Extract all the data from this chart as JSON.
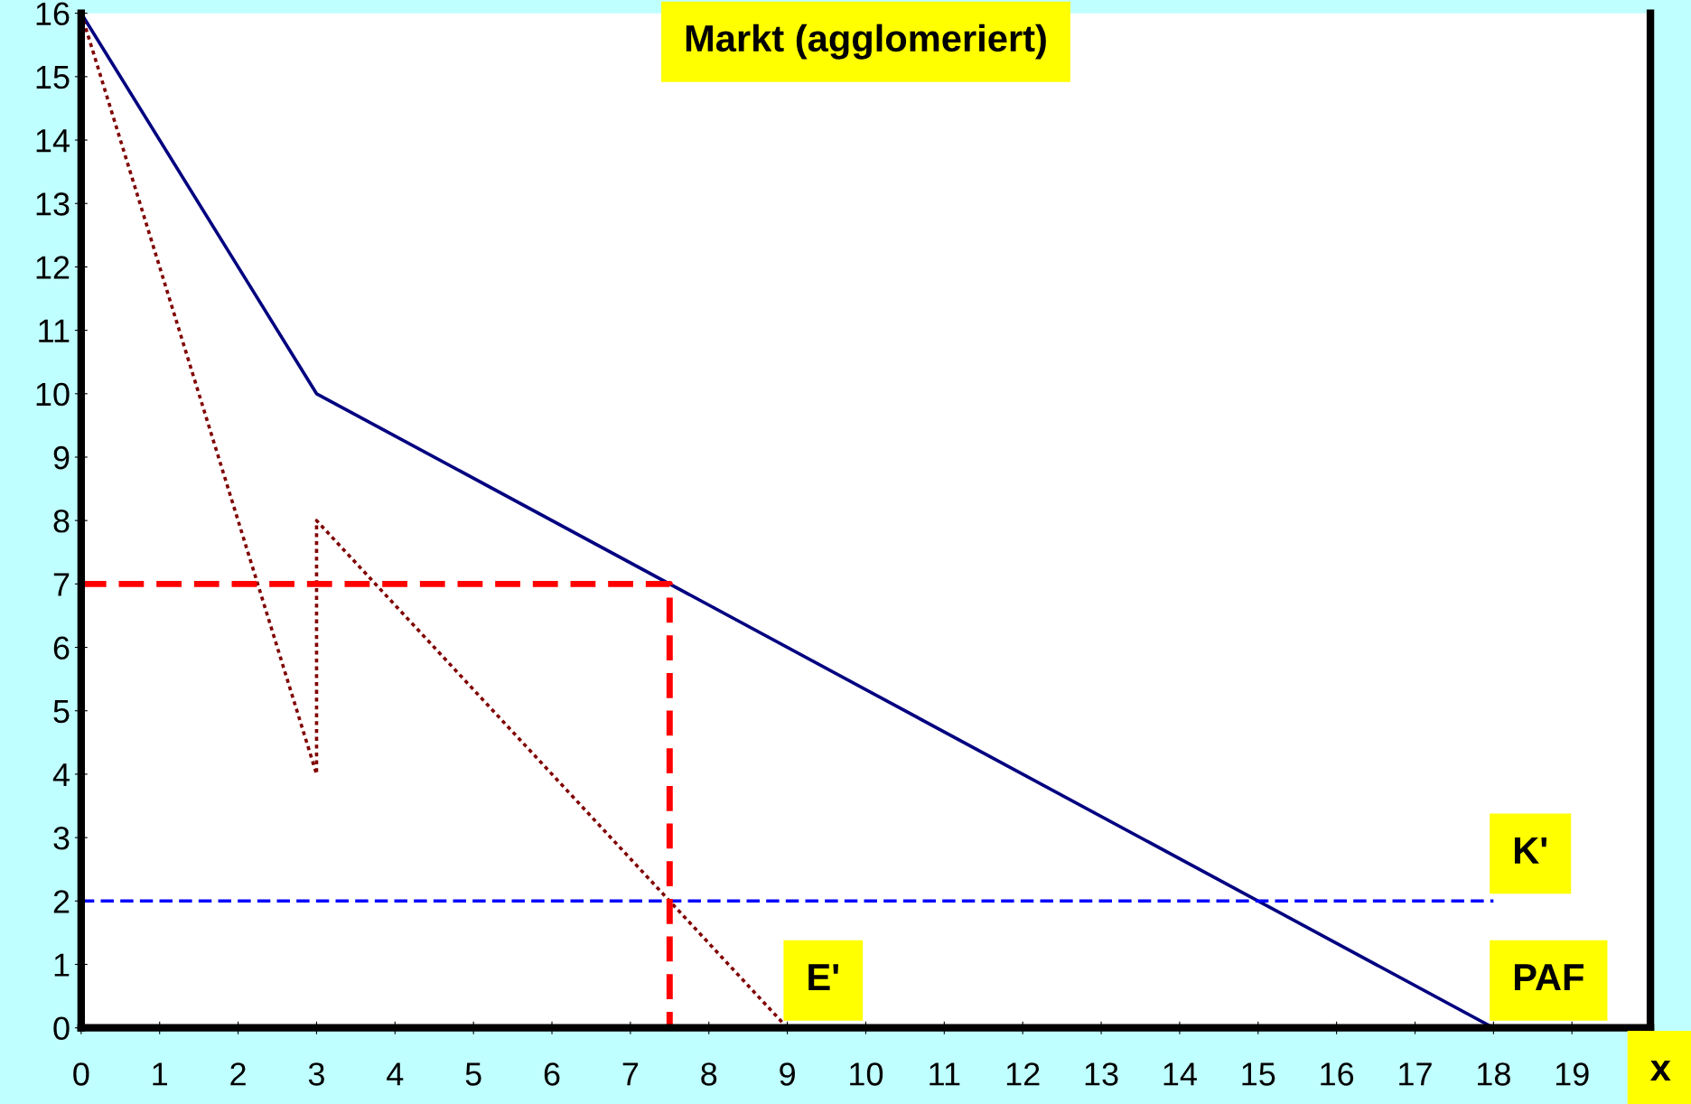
{
  "chart_data": {
    "type": "line",
    "title": "Markt (agglomeriert)",
    "xlabel": "x",
    "xlim": [
      0,
      20
    ],
    "ylim": [
      0,
      16
    ],
    "xticks": [
      0,
      1,
      2,
      3,
      4,
      5,
      6,
      7,
      8,
      9,
      10,
      11,
      12,
      13,
      14,
      15,
      16,
      17,
      18,
      19
    ],
    "yticks": [
      0,
      1,
      2,
      3,
      4,
      5,
      6,
      7,
      8,
      9,
      10,
      11,
      12,
      13,
      14,
      15,
      16
    ],
    "grid": false,
    "legend": false,
    "marker": "none",
    "series": [
      {
        "name": "PAF",
        "color": "#000080",
        "line_style": "solid",
        "x": [
          0,
          3,
          18
        ],
        "values": [
          16,
          10,
          0
        ]
      },
      {
        "name": "E'",
        "color": "#800000",
        "line_style": "dotted",
        "x": [
          0,
          3,
          3,
          9
        ],
        "values": [
          16,
          4,
          8,
          0
        ]
      },
      {
        "name": "K'",
        "color": "#0000ff",
        "line_style": "dashed",
        "x": [
          0,
          18
        ],
        "values": [
          2,
          2
        ]
      },
      {
        "color": "#ff0000",
        "line_style": "dashed",
        "x": [
          0,
          7.5,
          7.5
        ],
        "values": [
          7,
          7,
          0
        ]
      }
    ]
  }
}
